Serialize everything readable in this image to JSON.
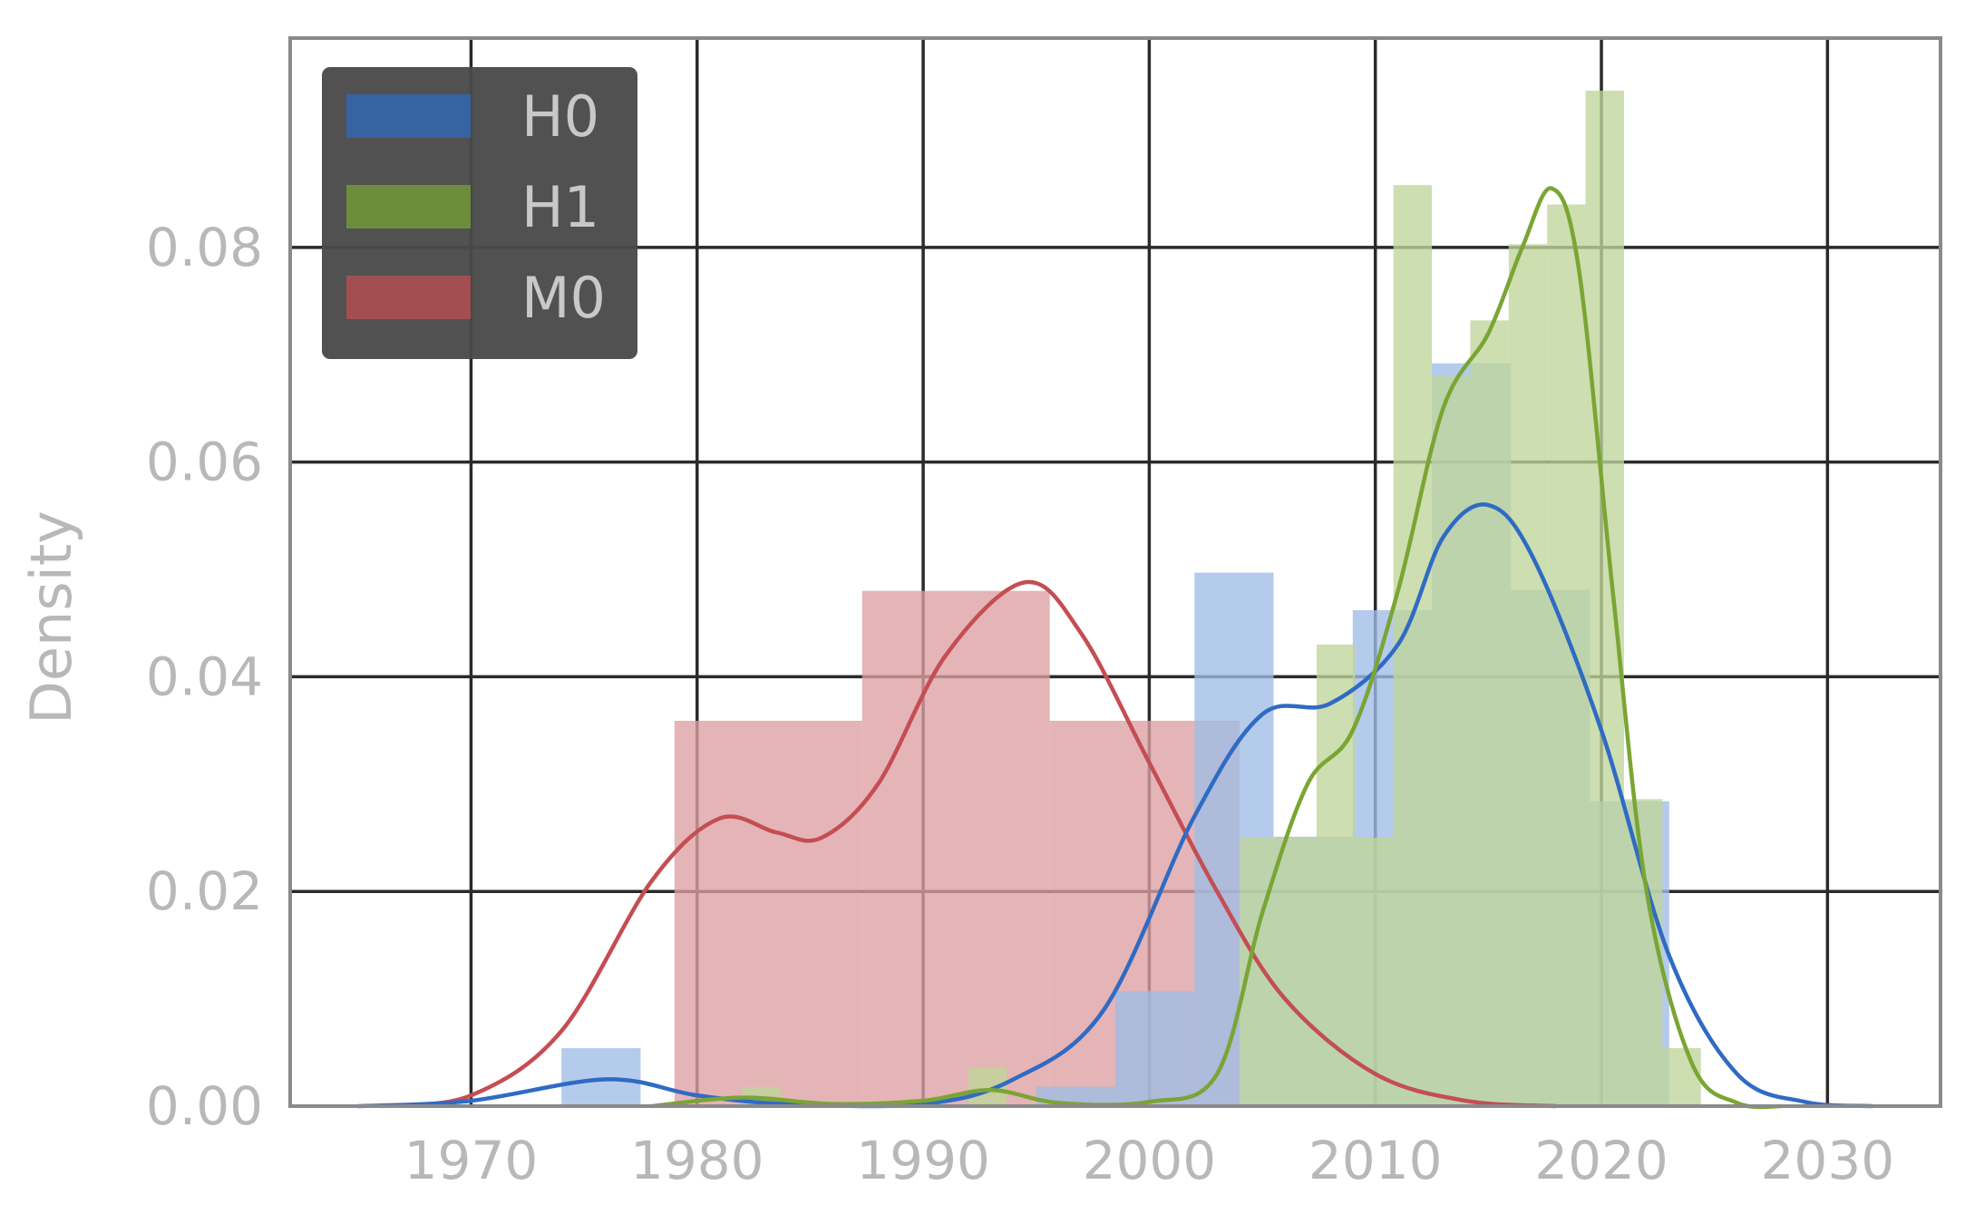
{
  "chart_data": {
    "type": "histogram-kde",
    "xlabel": "",
    "ylabel": "Density",
    "xlim": [
      1962,
      2035
    ],
    "ylim": [
      0,
      0.0995
    ],
    "xticks": [
      1970,
      1980,
      1990,
      2000,
      2010,
      2020,
      2030
    ],
    "yticks": [
      0.0,
      0.02,
      0.04,
      0.06,
      0.08
    ],
    "ytick_labels": [
      "0.00",
      "0.02",
      "0.04",
      "0.06",
      "0.08"
    ],
    "grid": true,
    "legend_position": "top-left",
    "series": [
      {
        "name": "H0",
        "color": "#2f6bc4",
        "hist_color": "#9fbde6",
        "bins": [
          {
            "x0": 1974.0,
            "x1": 1977.5,
            "y": 0.0054
          },
          {
            "x0": 1977.5,
            "x1": 1981.0,
            "y": 0.0
          },
          {
            "x0": 1981.0,
            "x1": 1984.5,
            "y": 0.0
          },
          {
            "x0": 1984.5,
            "x1": 1988.0,
            "y": 0.0
          },
          {
            "x0": 1988.0,
            "x1": 1991.5,
            "y": 0.0
          },
          {
            "x0": 1991.5,
            "x1": 1995.0,
            "y": 0.0
          },
          {
            "x0": 1995.0,
            "x1": 1998.5,
            "y": 0.0018
          },
          {
            "x0": 1998.5,
            "x1": 2002.0,
            "y": 0.0107
          },
          {
            "x0": 2002.0,
            "x1": 2005.5,
            "y": 0.0497
          },
          {
            "x0": 2005.5,
            "x1": 2009.0,
            "y": 0.0251
          },
          {
            "x0": 2009.0,
            "x1": 2012.5,
            "y": 0.0462
          },
          {
            "x0": 2012.5,
            "x1": 2016.0,
            "y": 0.0692
          },
          {
            "x0": 2016.0,
            "x1": 2019.5,
            "y": 0.0481
          },
          {
            "x0": 2019.5,
            "x1": 2023.0,
            "y": 0.0284
          }
        ],
        "kde": [
          [
            1965,
            0
          ],
          [
            1970,
            0.0005
          ],
          [
            1976,
            0.0025
          ],
          [
            1980,
            0.001
          ],
          [
            1984,
            0.0002
          ],
          [
            1990,
            0.0002
          ],
          [
            1994,
            0.0025
          ],
          [
            1998,
            0.009
          ],
          [
            2002,
            0.027
          ],
          [
            2005,
            0.0365
          ],
          [
            2008,
            0.0375
          ],
          [
            2011,
            0.043
          ],
          [
            2013,
            0.053
          ],
          [
            2015,
            0.056
          ],
          [
            2017,
            0.051
          ],
          [
            2020,
            0.035
          ],
          [
            2023,
            0.014
          ],
          [
            2026,
            0.003
          ],
          [
            2029,
            0.0004
          ],
          [
            2032,
            0.0
          ]
        ]
      },
      {
        "name": "H1",
        "color": "#7aa534",
        "hist_color": "#bfd59a",
        "bins": [
          {
            "x0": 1982.0,
            "x1": 1983.7,
            "y": 0.0018
          },
          {
            "x0": 1992.0,
            "x1": 1993.7,
            "y": 0.0036
          },
          {
            "x0": 2004.0,
            "x1": 2005.7,
            "y": 0.025
          },
          {
            "x0": 2005.7,
            "x1": 2007.4,
            "y": 0.025
          },
          {
            "x0": 2007.4,
            "x1": 2009.1,
            "y": 0.043
          },
          {
            "x0": 2009.1,
            "x1": 2010.8,
            "y": 0.025
          },
          {
            "x0": 2010.8,
            "x1": 2012.5,
            "y": 0.0858
          },
          {
            "x0": 2012.5,
            "x1": 2014.2,
            "y": 0.068
          },
          {
            "x0": 2014.2,
            "x1": 2015.9,
            "y": 0.0732
          },
          {
            "x0": 2015.9,
            "x1": 2017.6,
            "y": 0.0803
          },
          {
            "x0": 2017.6,
            "x1": 2019.3,
            "y": 0.084
          },
          {
            "x0": 2019.3,
            "x1": 2021.0,
            "y": 0.0946
          },
          {
            "x0": 2021.0,
            "x1": 2022.7,
            "y": 0.0286
          },
          {
            "x0": 2022.7,
            "x1": 2024.4,
            "y": 0.0054
          }
        ],
        "kde": [
          [
            1978,
            0
          ],
          [
            1982,
            0.0008
          ],
          [
            1986,
            0.0002
          ],
          [
            1990,
            0.0005
          ],
          [
            1993,
            0.0015
          ],
          [
            1996,
            0.0003
          ],
          [
            2000,
            0.0004
          ],
          [
            2003,
            0.003
          ],
          [
            2005,
            0.018
          ],
          [
            2007,
            0.03
          ],
          [
            2009,
            0.035
          ],
          [
            2011,
            0.048
          ],
          [
            2013,
            0.065
          ],
          [
            2015,
            0.072
          ],
          [
            2016.5,
            0.08
          ],
          [
            2017.8,
            0.0855
          ],
          [
            2019,
            0.078
          ],
          [
            2020.5,
            0.048
          ],
          [
            2022,
            0.02
          ],
          [
            2024,
            0.004
          ],
          [
            2026,
            0.0003
          ],
          [
            2028,
            0.0
          ]
        ]
      },
      {
        "name": "M0",
        "color": "#c44e52",
        "hist_color": "#de9fa1",
        "bins": [
          {
            "x0": 1979.0,
            "x1": 1987.3,
            "y": 0.0359
          },
          {
            "x0": 1987.3,
            "x1": 1995.6,
            "y": 0.048
          },
          {
            "x0": 1995.6,
            "x1": 2004.0,
            "y": 0.0359
          }
        ],
        "kde": [
          [
            1966,
            0
          ],
          [
            1970,
            0.001
          ],
          [
            1974,
            0.007
          ],
          [
            1978,
            0.021
          ],
          [
            1981,
            0.0268
          ],
          [
            1983.5,
            0.0255
          ],
          [
            1985.5,
            0.025
          ],
          [
            1988,
            0.03
          ],
          [
            1991,
            0.042
          ],
          [
            1994.5,
            0.0488
          ],
          [
            1997,
            0.044
          ],
          [
            2000,
            0.032
          ],
          [
            2003,
            0.02
          ],
          [
            2006,
            0.01
          ],
          [
            2010,
            0.003
          ],
          [
            2014,
            0.0005
          ],
          [
            2018,
            0.0
          ]
        ]
      }
    ]
  }
}
